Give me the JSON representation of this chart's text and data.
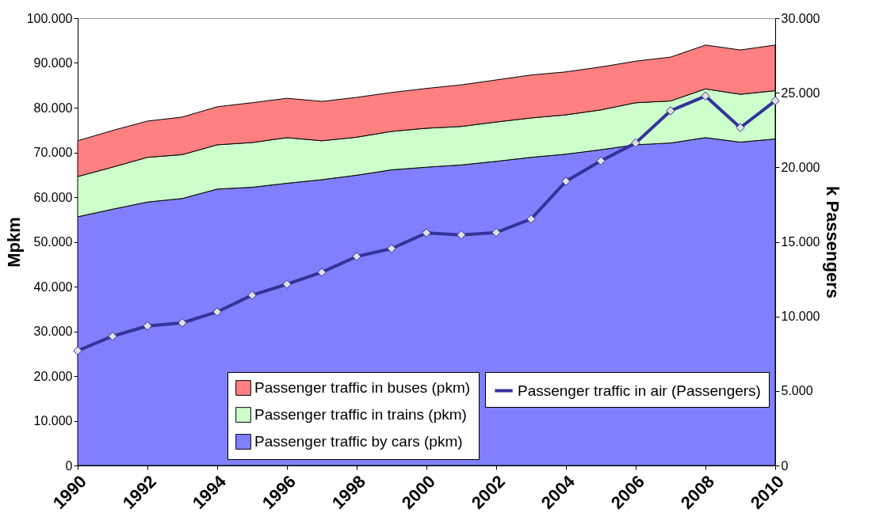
{
  "chart_data": {
    "type": "area",
    "stacked": true,
    "xlabel": null,
    "ylabel": "Mpkm",
    "y2label": "k Passengers",
    "x": [
      1990,
      1991,
      1992,
      1993,
      1994,
      1995,
      1996,
      1997,
      1998,
      1999,
      2000,
      2001,
      2002,
      2003,
      2004,
      2005,
      2006,
      2007,
      2008,
      2009,
      2010
    ],
    "xlim": [
      1990,
      2010
    ],
    "xticks": [
      1990,
      1992,
      1994,
      1996,
      1998,
      2000,
      2002,
      2004,
      2006,
      2008,
      2010
    ],
    "ylim": [
      0,
      100000
    ],
    "yticks": [
      {
        "value": 0,
        "label": "0"
      },
      {
        "value": 10000,
        "label": "10.000"
      },
      {
        "value": 20000,
        "label": "20.000"
      },
      {
        "value": 30000,
        "label": "30.000"
      },
      {
        "value": 40000,
        "label": "40.000"
      },
      {
        "value": 50000,
        "label": "50.000"
      },
      {
        "value": 60000,
        "label": "60.000"
      },
      {
        "value": 70000,
        "label": "70.000"
      },
      {
        "value": 80000,
        "label": "80.000"
      },
      {
        "value": 90000,
        "label": "90.000"
      },
      {
        "value": 100000,
        "label": "100.000"
      }
    ],
    "y2lim": [
      0,
      30000
    ],
    "y2ticks": [
      {
        "value": 0,
        "label": "0"
      },
      {
        "value": 5000,
        "label": "5.000"
      },
      {
        "value": 10000,
        "label": "10.000"
      },
      {
        "value": 15000,
        "label": "15.000"
      },
      {
        "value": 20000,
        "label": "20.000"
      },
      {
        "value": 25000,
        "label": "25.000"
      },
      {
        "value": 30000,
        "label": "30.000"
      }
    ],
    "legend": "bottom right",
    "series": [
      {
        "name": "Passenger traffic by cars (pkm)",
        "color": "#8080ff",
        "values": [
          55600,
          57300,
          58900,
          59700,
          61800,
          62200,
          63100,
          63900,
          64900,
          66100,
          66700,
          67200,
          68000,
          68900,
          69600,
          70600,
          71700,
          72100,
          73300,
          72300,
          73000
        ]
      },
      {
        "name": "Passenger traffic in trains (pkm)",
        "color": "#ccffcc",
        "values": [
          9000,
          9400,
          10000,
          9800,
          9900,
          10000,
          10200,
          8700,
          8500,
          8600,
          8700,
          8600,
          8800,
          8800,
          8800,
          8900,
          9400,
          9400,
          10900,
          10700,
          10800
        ]
      },
      {
        "name": "Passenger traffic in buses (pkm)",
        "color": "#ff8080",
        "values": [
          8000,
          8200,
          8100,
          8400,
          8500,
          8900,
          8800,
          8800,
          8900,
          8700,
          8900,
          9300,
          9400,
          9600,
          9600,
          9600,
          9300,
          9800,
          9800,
          9900,
          10200
        ]
      },
      {
        "name": "Passenger traffic in air (Passengers)",
        "type": "line",
        "axis": "y2",
        "marker": "diamond",
        "color": "#333399",
        "values": [
          7700,
          8670,
          9360,
          9570,
          10300,
          11420,
          12160,
          12960,
          14020,
          14550,
          15600,
          15470,
          15630,
          16530,
          19060,
          20430,
          21630,
          23790,
          24780,
          22660,
          24460
        ]
      }
    ]
  }
}
